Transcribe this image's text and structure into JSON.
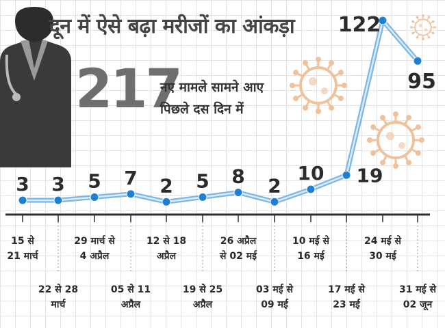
{
  "title": "दून में ऐसे बढ़ा मरीजों का आंकड़ा",
  "highlight": {
    "total": "217",
    "line1": "नए मामले सामने आए",
    "line2": "पिछले दस दिन में"
  },
  "colors": {
    "line": "#7eb6e4",
    "marker": "#1f7fd0",
    "virus": "#efc29b",
    "doctor": "#3a3a3a"
  },
  "chart_data": {
    "type": "line",
    "categories": [
      "15 से 21 मार्च",
      "22 से 28 मार्च",
      "29 मार्च से 4 अप्रैल",
      "05 से 11 अप्रैल",
      "12 से 18 अप्रैल",
      "19 से 25 अप्रैल",
      "26 अप्रैल से 02 मई",
      "03 मई से 09 मई",
      "10 मई से 16 मई",
      "17 मई से 23 मई",
      "24 मई से 30 मई",
      "31 मई से 02 जून"
    ],
    "values": [
      3,
      3,
      5,
      7,
      2,
      5,
      8,
      2,
      10,
      19,
      122,
      95
    ],
    "x_label_lines": [
      [
        "15 से",
        "21 मार्च"
      ],
      [
        "22 से 28",
        "मार्च"
      ],
      [
        "29 मार्च से",
        "4 अप्रैल"
      ],
      [
        "05 से 11",
        "अप्रैल"
      ],
      [
        "12 से 18",
        "अप्रैल"
      ],
      [
        "19 से 25",
        "अप्रैल"
      ],
      [
        "26 अप्रैल",
        "से 02 मई"
      ],
      [
        "03 मई से",
        "09 मई"
      ],
      [
        "10 मई से",
        "16 मई"
      ],
      [
        "17 मई से",
        "23 मई"
      ],
      [
        "24 मई से",
        "30 मई"
      ],
      [
        "31 मई से",
        "02 जून"
      ]
    ],
    "grid": true
  }
}
